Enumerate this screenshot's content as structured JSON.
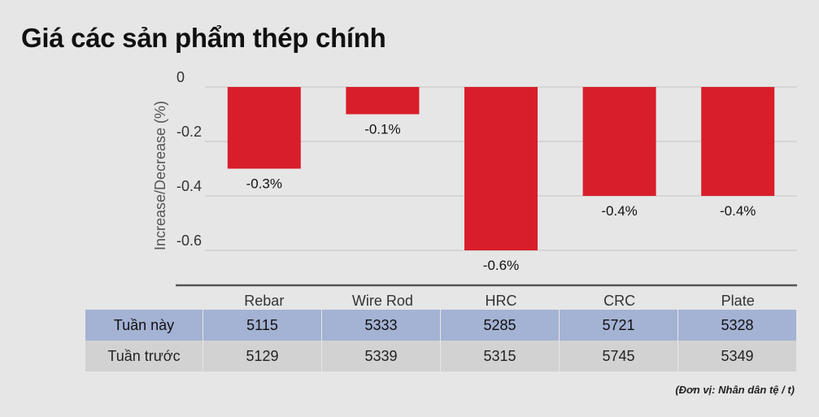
{
  "title": "Giá các sản phẩm thép chính",
  "chart_data": {
    "type": "bar",
    "categories": [
      "Rebar",
      "Wire Rod",
      "HRC",
      "CRC",
      "Plate"
    ],
    "values": [
      -0.3,
      -0.1,
      -0.6,
      -0.4,
      -0.4
    ],
    "data_labels": [
      "-0.3%",
      "-0.1%",
      "-0.6%",
      "-0.4%",
      "-0.4%"
    ],
    "ylabel": "Increase/Decrease (%)",
    "ylim": [
      -0.73,
      0.04
    ],
    "yticks": [
      0,
      -0.2,
      -0.4,
      -0.6
    ],
    "ytick_labels": [
      "0",
      "-0.2",
      "-0.4",
      "-0.6"
    ],
    "grid": true,
    "bar_color": "#d91e2b"
  },
  "table": {
    "rows": [
      {
        "label": "Tuần này",
        "values": [
          "5115",
          "5333",
          "5285",
          "5721",
          "5328"
        ]
      },
      {
        "label": "Tuần trước",
        "values": [
          "5129",
          "5339",
          "5315",
          "5745",
          "5349"
        ]
      }
    ]
  },
  "unit_note": "(Đơn vị: Nhân dân tệ / t)"
}
